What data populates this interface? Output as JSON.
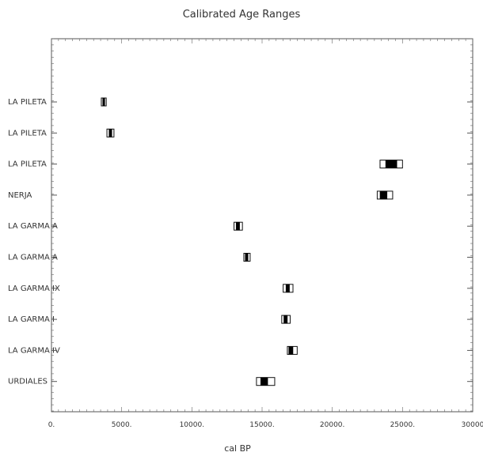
{
  "chart_data": {
    "type": "range",
    "title": "Calibrated Age Ranges",
    "xlabel": "cal BP",
    "ylabel": "",
    "xlim": [
      0,
      30000
    ],
    "xticks": [
      0,
      5000,
      10000,
      15000,
      20000,
      25000,
      30000
    ],
    "xtick_labels": [
      "0.",
      "5000.",
      "10000.",
      "15000.",
      "20000.",
      "25000.",
      "30000"
    ],
    "grid": false,
    "samples": [
      {
        "label": "LA PILETA",
        "range_95": [
          3550,
          3900
        ],
        "range_68": [
          3650,
          3800
        ]
      },
      {
        "label": "LA PILETA",
        "range_95": [
          3950,
          4450
        ],
        "range_68": [
          4100,
          4300
        ]
      },
      {
        "label": "LA PILETA",
        "range_95": [
          23400,
          25000
        ],
        "range_68": [
          23800,
          24600
        ]
      },
      {
        "label": "NERJA",
        "range_95": [
          23200,
          24300
        ],
        "range_68": [
          23400,
          23900
        ]
      },
      {
        "label": "LA GARMA A",
        "range_95": [
          13000,
          13600
        ],
        "range_68": [
          13150,
          13400
        ]
      },
      {
        "label": "LA GARMA A",
        "range_95": [
          13700,
          14150
        ],
        "range_68": [
          13800,
          14000
        ]
      },
      {
        "label": "LA GARMA IX",
        "range_95": [
          16500,
          17200
        ],
        "range_68": [
          16700,
          16950
        ]
      },
      {
        "label": "LA GARMA I",
        "range_95": [
          16400,
          17000
        ],
        "range_68": [
          16550,
          16800
        ]
      },
      {
        "label": "LA GARMA IV",
        "range_95": [
          16800,
          17500
        ],
        "range_68": [
          16900,
          17200
        ]
      },
      {
        "label": "URDIALES",
        "range_95": [
          14600,
          15900
        ],
        "range_68": [
          14900,
          15400
        ]
      }
    ]
  }
}
